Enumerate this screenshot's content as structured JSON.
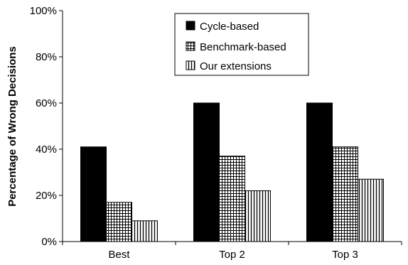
{
  "chart_data": {
    "type": "bar",
    "categories": [
      "Best",
      "Top 2",
      "Top 3"
    ],
    "series": [
      {
        "name": "Cycle-based",
        "values": [
          41,
          60,
          60
        ],
        "fill": "solid-black"
      },
      {
        "name": "Benchmark-based",
        "values": [
          17,
          37,
          41
        ],
        "fill": "grid-pattern"
      },
      {
        "name": "Our extensions",
        "values": [
          9,
          22,
          27
        ],
        "fill": "vertical-stripes"
      }
    ],
    "xlabel": "",
    "ylabel": "Percentage of Wrong Decisions",
    "ylim": [
      0,
      100
    ],
    "yticks": [
      0,
      20,
      40,
      60,
      80,
      100
    ],
    "ytick_suffix": "%",
    "grid": false,
    "legend_position": "top-center"
  }
}
